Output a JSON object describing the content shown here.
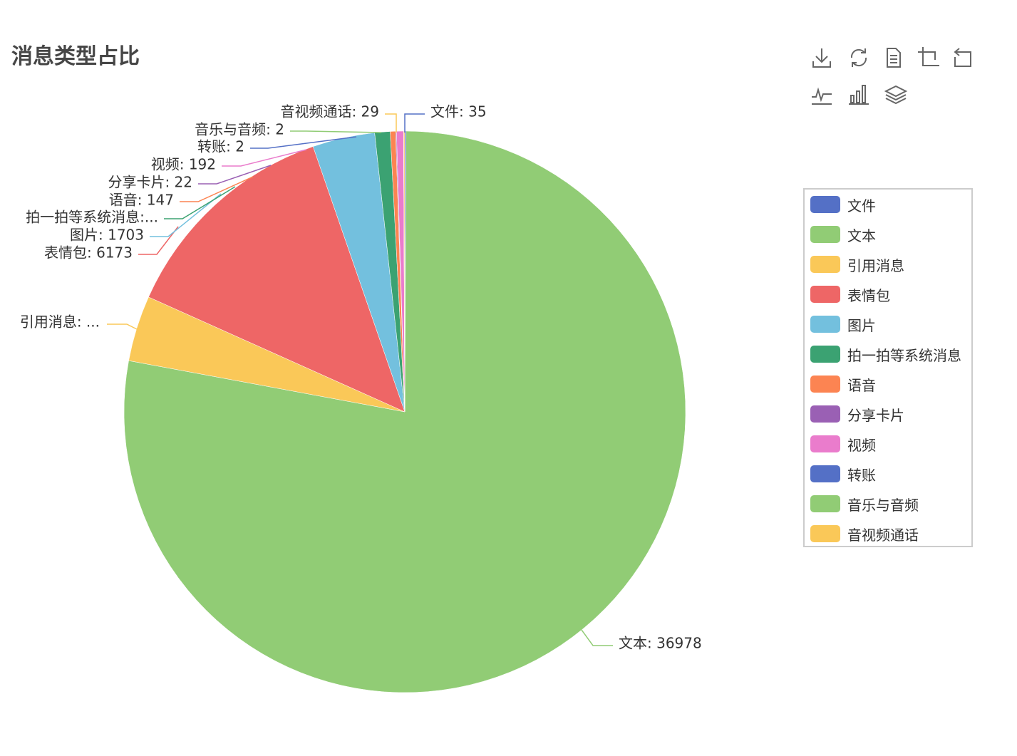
{
  "chart_data": {
    "type": "pie",
    "title": "消息类型占比",
    "slices": [
      {
        "name": "文件",
        "value": 35,
        "color": "#5470c6",
        "label_text": "文件: 35"
      },
      {
        "name": "文本",
        "value": 36978,
        "color": "#91cc75",
        "label_text": "文本: 36978"
      },
      {
        "name": "引用消息",
        "value": 1800,
        "color": "#fac858",
        "label_text": "引用消息: ..."
      },
      {
        "name": "表情包",
        "value": 6173,
        "color": "#ee6666",
        "label_text": "表情包: 6173"
      },
      {
        "name": "图片",
        "value": 1703,
        "color": "#73c0de",
        "label_text": "图片: 1703"
      },
      {
        "name": "拍一拍等系统消息",
        "value": 420,
        "color": "#3ba272",
        "label_text": "拍一拍等系统消息:..."
      },
      {
        "name": "语音",
        "value": 147,
        "color": "#fc8452",
        "label_text": "语音: 147"
      },
      {
        "name": "分享卡片",
        "value": 22,
        "color": "#9a60b4",
        "label_text": "分享卡片: 22"
      },
      {
        "name": "视频",
        "value": 192,
        "color": "#ea7ccc",
        "label_text": "视频: 192"
      },
      {
        "name": "转账",
        "value": 2,
        "color": "#5470c6",
        "label_text": "转账: 2"
      },
      {
        "name": "音乐与音频",
        "value": 2,
        "color": "#91cc75",
        "label_text": "音乐与音频: 2"
      },
      {
        "name": "音视频通话",
        "value": 29,
        "color": "#fac858",
        "label_text": "音视频通话: 29"
      }
    ],
    "legend_position": "right"
  },
  "toolbox": {
    "icons": [
      "download-icon",
      "refresh-icon",
      "data-view-icon",
      "zoom-icon",
      "zoom-reset-icon",
      "line-chart-icon",
      "bar-chart-icon",
      "stack-icon"
    ]
  }
}
